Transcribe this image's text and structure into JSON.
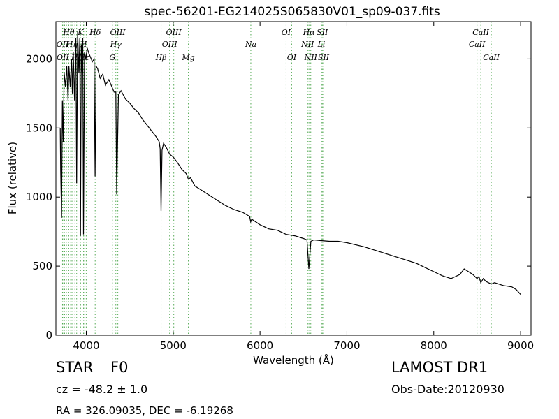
{
  "chart_data": {
    "type": "line",
    "title": "spec-56201-EG214025S065830V01_sp09-037.fits",
    "xlabel": "Wavelength (Å)",
    "ylabel": "Flux (relative)",
    "xlim": [
      3650,
      9120
    ],
    "ylim": [
      0,
      2270
    ],
    "xticks": [
      4000,
      5000,
      6000,
      7000,
      8000,
      9000
    ],
    "yticks": [
      0,
      500,
      1000,
      1500,
      2000
    ],
    "grid": false,
    "series": [
      {
        "color": "#000000",
        "x": [
          3700,
          3705,
          3715,
          3725,
          3735,
          3745,
          3760,
          3775,
          3790,
          3800,
          3815,
          3830,
          3840,
          3850,
          3865,
          3880,
          3889,
          3900,
          3915,
          3925,
          3933,
          3942,
          3952,
          3960,
          3968,
          3980,
          3995,
          4010,
          4030,
          4050,
          4070,
          4090,
          4101,
          4112,
          4130,
          4160,
          4190,
          4220,
          4260,
          4300,
          4320,
          4340,
          4350,
          4370,
          4400,
          4450,
          4500,
          4550,
          4600,
          4650,
          4700,
          4750,
          4800,
          4840,
          4850,
          4861,
          4872,
          4890,
          4920,
          4960,
          5000,
          5050,
          5100,
          5150,
          5175,
          5200,
          5250,
          5300,
          5400,
          5500,
          5600,
          5700,
          5800,
          5880,
          5893,
          5905,
          6000,
          6100,
          6200,
          6300,
          6400,
          6500,
          6540,
          6562,
          6585,
          6620,
          6700,
          6800,
          6900,
          7000,
          7200,
          7400,
          7600,
          7800,
          7900,
          8000,
          8100,
          8200,
          8300,
          8350,
          8400,
          8450,
          8498,
          8520,
          8542,
          8570,
          8600,
          8662,
          8700,
          8800,
          8900,
          8950,
          9000
        ],
        "y": [
          1500,
          1200,
          850,
          1700,
          1400,
          1900,
          1800,
          1950,
          1700,
          1950,
          1800,
          2000,
          1750,
          2050,
          1700,
          2150,
          1100,
          2200,
          1900,
          2150,
          720,
          2100,
          1900,
          2150,
          730,
          2050,
          2000,
          2080,
          2040,
          2010,
          1980,
          2000,
          1150,
          1950,
          1930,
          1860,
          1890,
          1810,
          1850,
          1790,
          1760,
          1760,
          1020,
          1740,
          1770,
          1710,
          1680,
          1640,
          1610,
          1560,
          1520,
          1480,
          1440,
          1400,
          1350,
          900,
          1340,
          1390,
          1360,
          1310,
          1290,
          1250,
          1200,
          1170,
          1130,
          1140,
          1080,
          1060,
          1020,
          980,
          940,
          910,
          890,
          860,
          820,
          840,
          800,
          770,
          760,
          730,
          720,
          700,
          690,
          480,
          680,
          690,
          685,
          680,
          680,
          670,
          640,
          600,
          560,
          520,
          490,
          460,
          430,
          410,
          440,
          480,
          460,
          440,
          410,
          425,
          380,
          410,
          390,
          370,
          380,
          360,
          350,
          330,
          295
        ]
      }
    ],
    "lines": [
      {
        "x": 3726,
        "label": "OII",
        "row": 1
      },
      {
        "x": 3729,
        "label": "OII",
        "row": 2
      },
      {
        "x": 3750,
        "label": "",
        "row": 0
      },
      {
        "x": 3771,
        "label": "",
        "row": 0
      },
      {
        "x": 3798,
        "label": "Hθ",
        "row": 0
      },
      {
        "x": 3820,
        "label": "",
        "row": 2
      },
      {
        "x": 3835,
        "label": "Hη",
        "row": 1
      },
      {
        "x": 3869,
        "label": "",
        "row": 1
      },
      {
        "x": 3889,
        "label": "Hζ",
        "row": 2
      },
      {
        "x": 3934,
        "label": "K",
        "row": 0
      },
      {
        "x": 3969,
        "label": "H",
        "row": 1
      },
      {
        "x": 3970,
        "label": "Hε",
        "row": 2
      },
      {
        "x": 3999,
        "label": "",
        "row": 1
      },
      {
        "x": 4102,
        "label": "Hδ",
        "row": 0
      },
      {
        "x": 4300,
        "label": "G",
        "row": 2
      },
      {
        "x": 4340,
        "label": "Hγ",
        "row": 1
      },
      {
        "x": 4363,
        "label": "OIII",
        "row": 0
      },
      {
        "x": 4861,
        "label": "Hβ",
        "row": 2
      },
      {
        "x": 4959,
        "label": "OIII",
        "row": 1
      },
      {
        "x": 5007,
        "label": "OIII",
        "row": 0
      },
      {
        "x": 5175,
        "label": "Mg",
        "row": 2
      },
      {
        "x": 5894,
        "label": "Na",
        "row": 1
      },
      {
        "x": 6300,
        "label": "OI",
        "row": 0
      },
      {
        "x": 6364,
        "label": "OI",
        "row": 2
      },
      {
        "x": 6548,
        "label": "NII",
        "row": 1
      },
      {
        "x": 6563,
        "label": "Hα",
        "row": 0
      },
      {
        "x": 6584,
        "label": "NII",
        "row": 2
      },
      {
        "x": 6707,
        "label": "Li",
        "row": 1
      },
      {
        "x": 6717,
        "label": "SII",
        "row": 0
      },
      {
        "x": 6731,
        "label": "SII",
        "row": 2
      },
      {
        "x": 8498,
        "label": "CaII",
        "row": 1
      },
      {
        "x": 8542,
        "label": "CaII",
        "row": 0
      },
      {
        "x": 8662,
        "label": "CaII",
        "row": 2
      }
    ]
  },
  "info": {
    "class_label": "STAR",
    "subclass_label": "F0",
    "survey_label": "LAMOST DR1",
    "cz_text": "cz = -48.2 ± 1.0",
    "obs_date": "Obs-Date:20120930",
    "coords": "RA = 326.09035, DEC = -6.19268"
  },
  "colors": {
    "spectrum": "#000000",
    "line_markers": "#55aa55",
    "background": "#ffffff"
  }
}
